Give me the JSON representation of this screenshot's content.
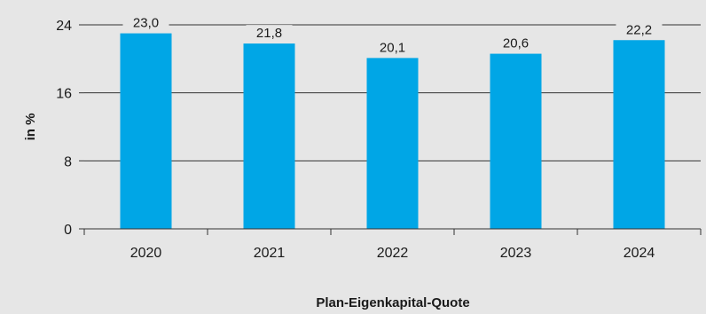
{
  "chart_data": {
    "type": "bar",
    "categories": [
      "2020",
      "2021",
      "2022",
      "2023",
      "2024"
    ],
    "values": [
      23.0,
      21.8,
      20.1,
      20.6,
      22.2
    ],
    "data_labels": [
      "23,0",
      "21,8",
      "20,1",
      "20,6",
      "22,2"
    ],
    "title": "",
    "xlabel": "Plan-Eigenkapital-Quote",
    "ylabel": "in %",
    "ylim": [
      0,
      24
    ],
    "yticks": [
      0,
      8,
      16,
      24
    ],
    "ytick_labels": [
      "0",
      "8",
      "16",
      "24"
    ],
    "grid": true,
    "legend": "none",
    "bar_color": "#00a6e6",
    "background_color": "#e6e6e6",
    "grid_color": "#333333"
  }
}
